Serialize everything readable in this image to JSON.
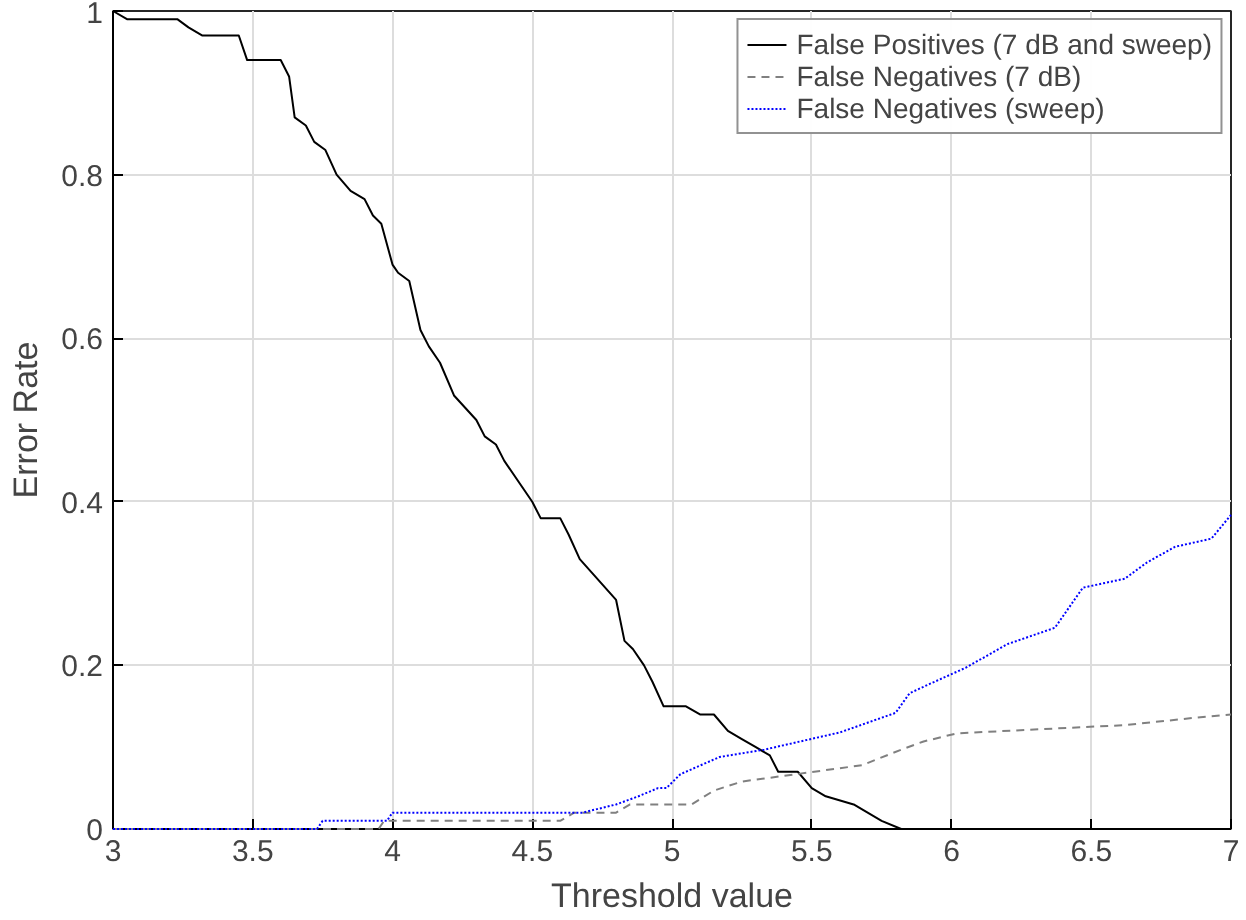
{
  "chart_data": {
    "type": "line",
    "xlabel": "Threshold value",
    "ylabel": "Error Rate",
    "xlim": [
      3,
      7
    ],
    "ylim": [
      0,
      1
    ],
    "xticks": [
      3,
      3.5,
      4,
      4.5,
      5,
      5.5,
      6,
      6.5,
      7
    ],
    "yticks": [
      0,
      0.2,
      0.4,
      0.6,
      0.8,
      1
    ],
    "grid": true,
    "legend": "top right",
    "series": [
      {
        "name": "False Positives (7 dB and sweep)",
        "color": "#000000",
        "line_style": "solid",
        "x": [
          3,
          3.05,
          3.23,
          3.27,
          3.32,
          3.45,
          3.48,
          3.6,
          3.63,
          3.65,
          3.69,
          3.72,
          3.76,
          3.8,
          3.85,
          3.9,
          3.93,
          3.96,
          4.0,
          4.02,
          4.06,
          4.1,
          4.13,
          4.17,
          4.22,
          4.3,
          4.33,
          4.37,
          4.4,
          4.5,
          4.53,
          4.6,
          4.63,
          4.67,
          4.8,
          4.83,
          4.86,
          4.9,
          4.93,
          4.97,
          5.02,
          5.05,
          5.1,
          5.15,
          5.2,
          5.25,
          5.3,
          5.35,
          5.38,
          5.45,
          5.5,
          5.55,
          5.65,
          5.7,
          5.75,
          5.82,
          7
        ],
        "values": [
          1,
          0.99,
          0.99,
          0.98,
          0.97,
          0.97,
          0.94,
          0.94,
          0.92,
          0.87,
          0.86,
          0.84,
          0.83,
          0.8,
          0.78,
          0.77,
          0.75,
          0.74,
          0.69,
          0.68,
          0.67,
          0.61,
          0.59,
          0.57,
          0.53,
          0.5,
          0.48,
          0.47,
          0.45,
          0.4,
          0.38,
          0.38,
          0.36,
          0.33,
          0.28,
          0.23,
          0.22,
          0.2,
          0.18,
          0.15,
          0.15,
          0.15,
          0.14,
          0.14,
          0.12,
          0.11,
          0.1,
          0.09,
          0.07,
          0.07,
          0.05,
          0.04,
          0.03,
          0.02,
          0.01,
          0,
          0
        ]
      },
      {
        "name": "False Negatives (7 dB)",
        "color": "#808080",
        "line_style": "dashed",
        "x": [
          3,
          3.95,
          3.97,
          4.6,
          4.65,
          4.8,
          4.85,
          5.07,
          5.15,
          5.25,
          5.68,
          5.82,
          5.9,
          6.02,
          6.62,
          6.9,
          7
        ],
        "values": [
          0,
          0,
          0.01,
          0.01,
          0.02,
          0.02,
          0.03,
          0.03,
          0.047,
          0.058,
          0.078,
          0.097,
          0.107,
          0.117,
          0.127,
          0.137,
          0.14
        ]
      },
      {
        "name": "False Negatives (sweep)",
        "color": "#0000ff",
        "line_style": "dotted",
        "x": [
          3,
          3.73,
          3.75,
          3.98,
          4.0,
          4.68,
          4.8,
          4.88,
          4.95,
          4.98,
          5.03,
          5.17,
          5.33,
          5.6,
          5.8,
          5.85,
          5.92,
          6.05,
          6.2,
          6.37,
          6.47,
          6.62,
          6.7,
          6.8,
          6.93,
          7
        ],
        "values": [
          0,
          0,
          0.01,
          0.01,
          0.02,
          0.02,
          0.03,
          0.04,
          0.05,
          0.05,
          0.067,
          0.088,
          0.097,
          0.118,
          0.142,
          0.166,
          0.177,
          0.197,
          0.226,
          0.246,
          0.295,
          0.306,
          0.326,
          0.345,
          0.355,
          0.384
        ]
      }
    ]
  }
}
